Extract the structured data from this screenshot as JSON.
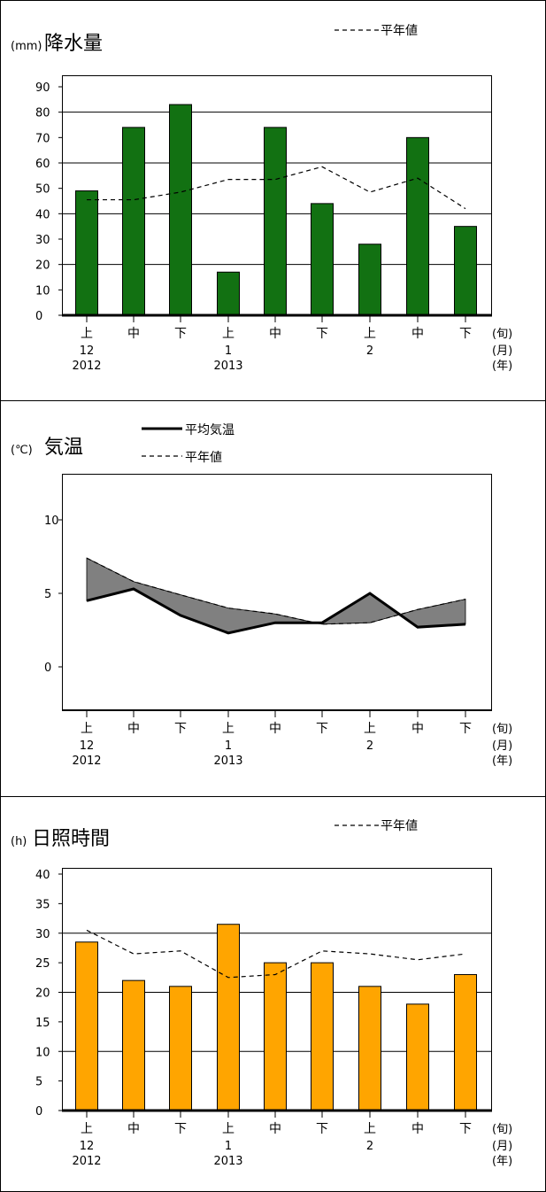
{
  "colors": {
    "precip_bar": "#127112",
    "sunshine_bar": "#ffa500",
    "temp_fill": "#808080",
    "line": "#000000"
  },
  "x_axis": {
    "period_labels": [
      "上",
      "中",
      "下",
      "上",
      "中",
      "下",
      "上",
      "中",
      "下"
    ],
    "month_labels": [
      "12",
      "1",
      "2"
    ],
    "year_labels": [
      "2012",
      "2013"
    ],
    "unit_period": "(旬)",
    "unit_month": "(月)",
    "unit_year": "(年)"
  },
  "chart_data": [
    {
      "type": "bar",
      "title": "降水量",
      "unit": "(mm)",
      "ylim": [
        0,
        90
      ],
      "yticks": [
        0,
        10,
        20,
        30,
        40,
        50,
        60,
        70,
        80,
        90
      ],
      "gridlines": [
        20,
        40,
        60,
        80
      ],
      "series": [
        {
          "type": "bar",
          "values": [
            49,
            74,
            83,
            17,
            74,
            44,
            28,
            70,
            35
          ]
        },
        {
          "name": "平年値",
          "type": "line",
          "style": "dashed",
          "values": [
            45.5,
            45.5,
            48.5,
            53.5,
            53.5,
            58.5,
            48.5,
            54,
            42
          ]
        }
      ],
      "legend": "top-right"
    },
    {
      "type": "area",
      "title": "気温",
      "unit": "(℃)",
      "ylim": [
        -3,
        13
      ],
      "yticks": [
        0,
        5,
        10
      ],
      "series": [
        {
          "name": "平均気温",
          "type": "line",
          "style": "solid",
          "values": [
            4.5,
            5.3,
            3.5,
            2.3,
            3,
            3,
            5,
            2.7,
            2.9
          ]
        },
        {
          "name": "平年値",
          "type": "line",
          "style": "dashed",
          "values": [
            7.4,
            5.8,
            4.9,
            4,
            3.6,
            2.9,
            3,
            3.9,
            4.6
          ]
        }
      ],
      "fill_between": "gray where normal is above average",
      "legend": "top"
    },
    {
      "type": "bar",
      "title": "日照時間",
      "unit": "(h)",
      "ylim": [
        0,
        40
      ],
      "yticks": [
        0,
        5,
        10,
        15,
        20,
        25,
        30,
        35,
        40
      ],
      "gridlines": [
        10,
        20,
        30
      ],
      "series": [
        {
          "type": "bar",
          "values": [
            28.5,
            22,
            21,
            31.5,
            25,
            25,
            21,
            18,
            23
          ]
        },
        {
          "name": "平年値",
          "type": "line",
          "style": "dashed",
          "values": [
            30.5,
            26.5,
            27,
            22.5,
            23,
            27,
            26.5,
            25.5,
            26.5
          ]
        }
      ],
      "legend": "top-right"
    }
  ]
}
